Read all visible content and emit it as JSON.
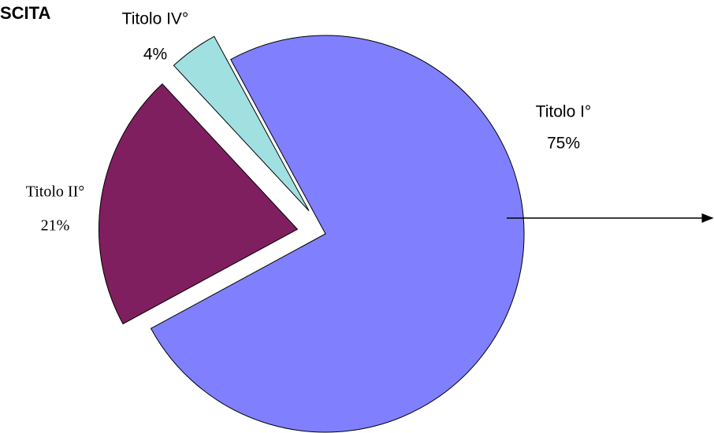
{
  "chart_data": {
    "type": "pie",
    "title": "SCITA",
    "categories": [
      "Titolo I°",
      "Titolo II°",
      "Titolo IV°"
    ],
    "values": [
      75,
      21,
      4
    ],
    "value_labels": [
      "75%",
      "21%",
      "4%"
    ],
    "colors": [
      "#8080ff",
      "#7f1f5f",
      "#a0e0e0"
    ]
  }
}
